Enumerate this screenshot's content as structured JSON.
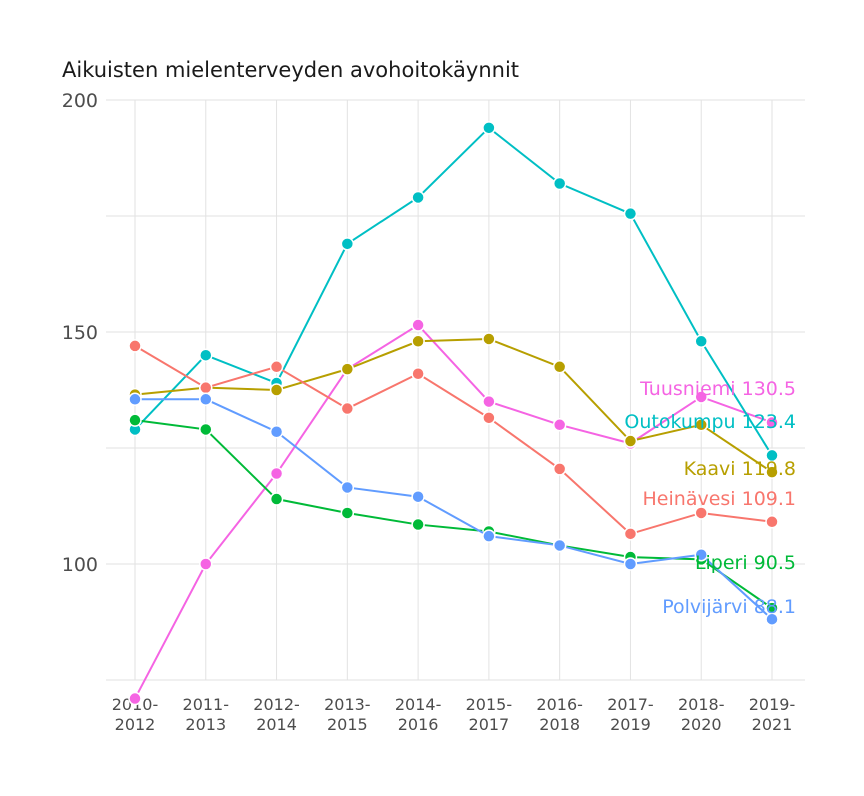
{
  "chart_data": {
    "type": "line",
    "title": "Aikuisten mielenterveyden avohoitokäynnit",
    "xlabel": "",
    "ylabel": "",
    "categories": [
      "2010-2012",
      "2011-2013",
      "2012-2014",
      "2013-2015",
      "2014-2016",
      "2015-2017",
      "2016-2018",
      "2017-2019",
      "2018-2020",
      "2019-2021"
    ],
    "ylim": [
      75,
      200
    ],
    "yticks": [
      100,
      150,
      200
    ],
    "grid": true,
    "legend": "none",
    "series": [
      {
        "name": "Tuusniemi",
        "end_label": "Tuusniemi 130.5",
        "color": "#f564e3",
        "values": [
          71,
          100,
          119.5,
          142,
          151.5,
          135,
          130,
          126,
          136,
          130.5
        ]
      },
      {
        "name": "Outokumpu",
        "end_label": "Outokumpu 123.4",
        "color": "#00bfc4",
        "values": [
          129,
          145,
          139,
          169,
          179,
          194,
          182,
          175.5,
          148,
          123.4
        ]
      },
      {
        "name": "Kaavi",
        "end_label": "Kaavi 119.8",
        "color": "#b79f00",
        "values": [
          136.5,
          138,
          137.5,
          142,
          148,
          148.5,
          142.5,
          126.5,
          130,
          119.8
        ]
      },
      {
        "name": "Heinävesi",
        "end_label": "Heinävesi 109.1",
        "color": "#f8766d",
        "values": [
          147,
          138,
          142.5,
          133.5,
          141,
          131.5,
          120.5,
          106.5,
          111,
          109.1
        ]
      },
      {
        "name": "Liperi",
        "end_label": "Liperi 90.5",
        "color": "#00ba38",
        "values": [
          131,
          129,
          114,
          111,
          108.5,
          107,
          104,
          101.5,
          101,
          90.5
        ]
      },
      {
        "name": "Polvijärvi",
        "end_label": "Polvijärvi 88.1",
        "color": "#619cff",
        "values": [
          135.5,
          135.5,
          128.5,
          116.5,
          114.5,
          106,
          104,
          100,
          102,
          88.1
        ]
      }
    ]
  }
}
